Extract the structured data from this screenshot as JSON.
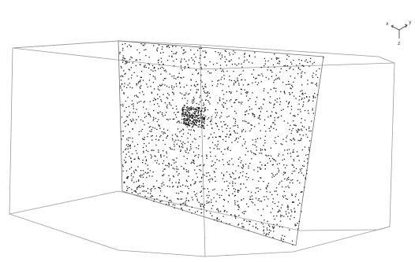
{
  "viewer": {
    "background": "#ffffff",
    "point_color": "#1a1a1a",
    "box_edge_color": "#9a9a9a",
    "plane_edge_color": "#6e6e6e",
    "point_count": 2200
  },
  "orientation_triad": {
    "icon": "axis-triad-icon",
    "labels": {
      "x": "x",
      "y": "y",
      "z": "z"
    }
  }
}
